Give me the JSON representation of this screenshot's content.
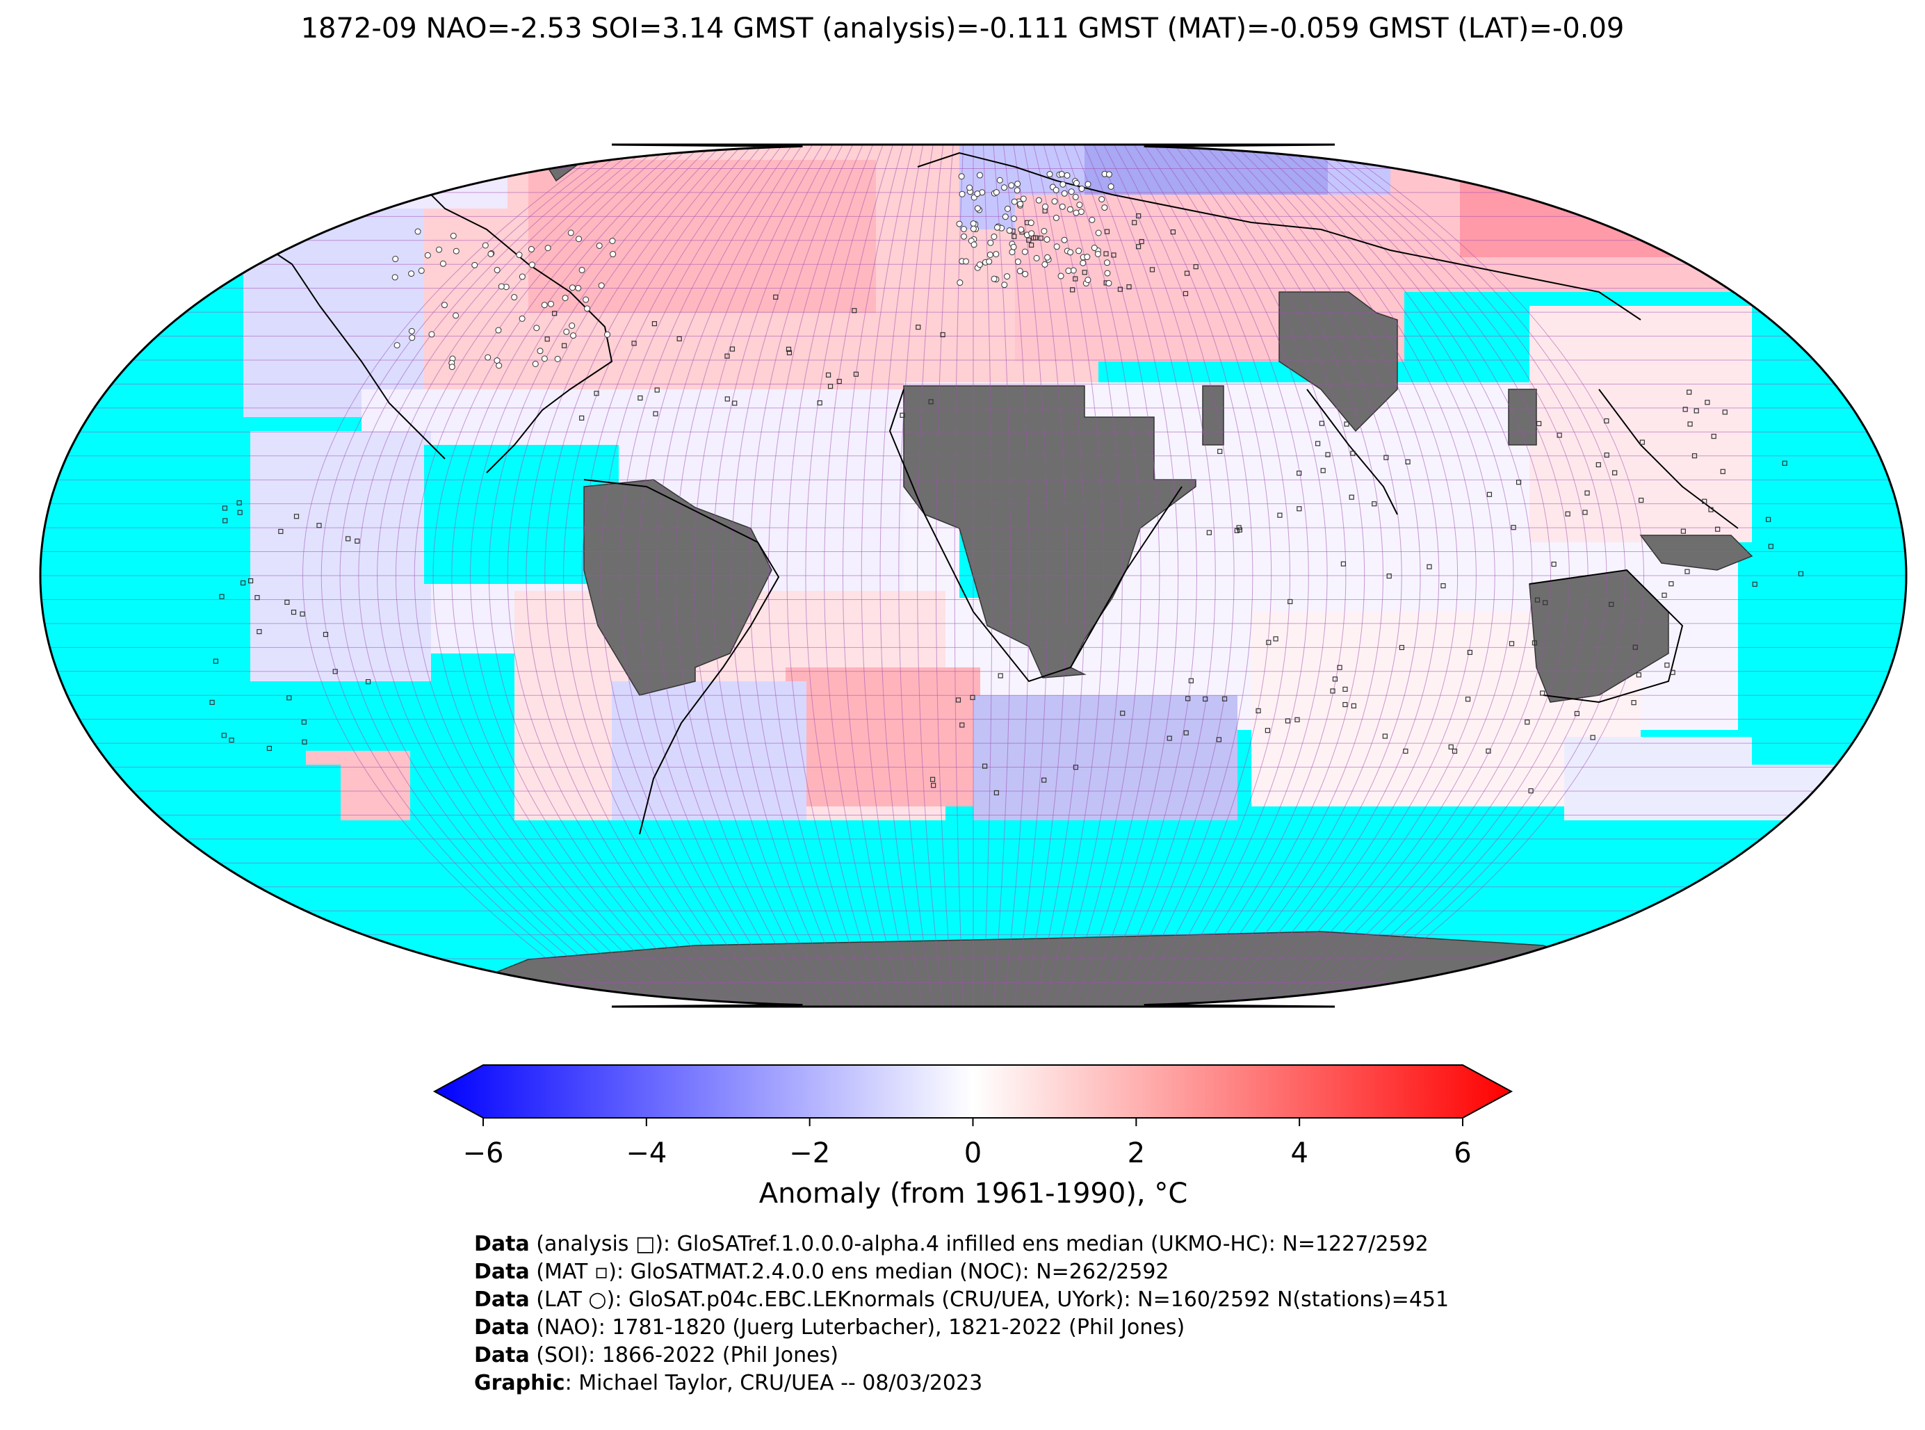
{
  "title": "1872-09 NAO=-2.53 SOI=3.14 GMST (analysis)=-0.111 GMST (MAT)=-0.059 GMST (LAT)=-0.09",
  "colorbar": {
    "label": "Anomaly (from 1961-1990), °C",
    "ticks": [
      "−6",
      "−4",
      "−2",
      "0",
      "2",
      "4",
      "6"
    ],
    "min": -6,
    "max": 6,
    "colors": {
      "low": "#0000ff",
      "mid": "#ffffff",
      "high": "#ff0000"
    }
  },
  "map_colors": {
    "ocean_missing": "#00ffff",
    "land_missing": "#6e6e6e",
    "grid": "#a050b0"
  },
  "credits": [
    {
      "bold": "Data",
      "text": " (analysis □): GloSATref.1.0.0.0-alpha.4 infilled ens median (UKMO-HC): N=1227/2592"
    },
    {
      "bold": "Data",
      "text": " (MAT ▫): GloSATMAT.2.4.0.0 ens median (NOC): N=262/2592"
    },
    {
      "bold": "Data",
      "text": " (LAT ○): GloSAT.p04c.EBC.LEKnormals (CRU/UEA, UYork): N=160/2592 N(stations)=451"
    },
    {
      "bold": "Data",
      "text": " (NAO): 1781-1820 (Juerg Luterbacher), 1821-2022 (Phil Jones)"
    },
    {
      "bold": "Data",
      "text": " (SOI): 1866-2022 (Phil Jones)"
    },
    {
      "bold": "Graphic",
      "text": ": Michael Taylor, CRU/UEA -- 08/03/2023"
    }
  ]
}
